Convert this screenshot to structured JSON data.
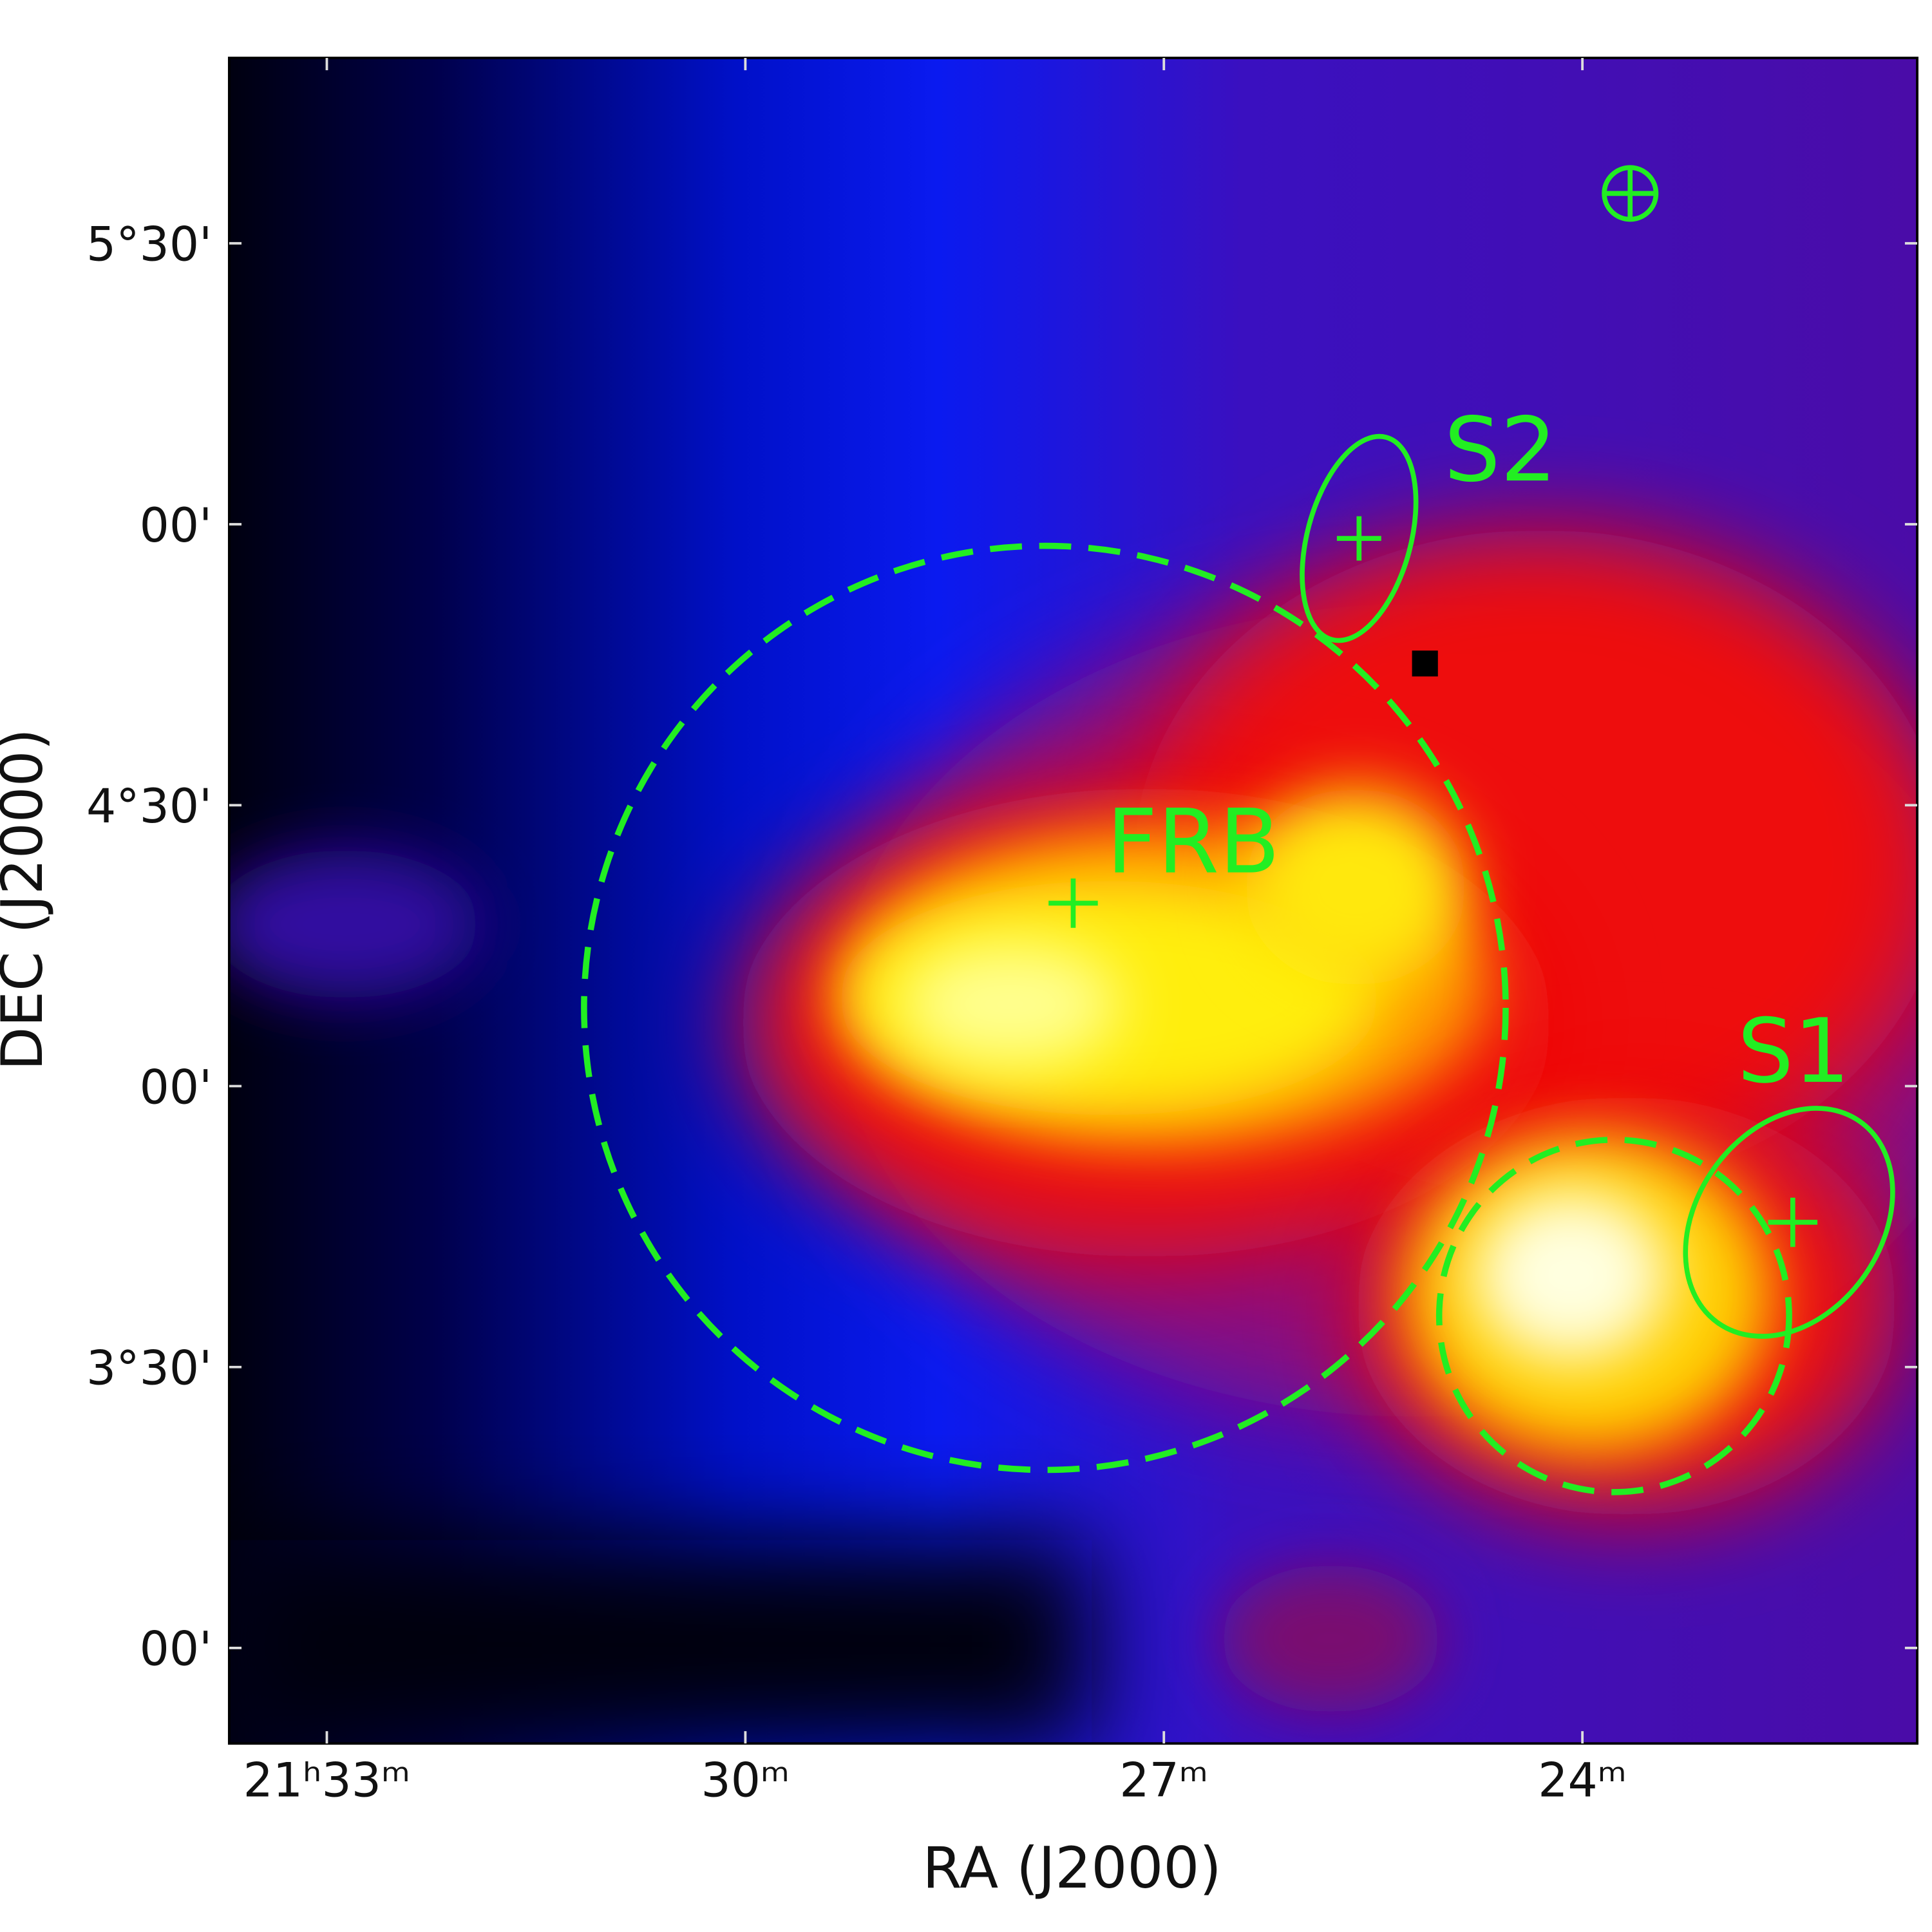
{
  "chart_data": {
    "type": "skymap",
    "xlabel": "RA (J2000)",
    "ylabel": "DEC (J2000)",
    "xlim": [
      1293.7,
      1281.6
    ],
    "xticks": [
      {
        "value": 1293,
        "label": "21ʰ33ᵐ"
      },
      {
        "value": 1290,
        "label": "30ᵐ"
      },
      {
        "value": 1287,
        "label": "27ᵐ"
      },
      {
        "value": 1284,
        "label": "24ᵐ"
      }
    ],
    "ylim": [
      2.83,
      5.83
    ],
    "yticks": [
      {
        "value": 5.5,
        "label": "5°30'"
      },
      {
        "value": 5.0,
        "label": "00'"
      },
      {
        "value": 4.5,
        "label": "4°30'"
      },
      {
        "value": 4.0,
        "label": "00'"
      },
      {
        "value": 3.5,
        "label": "3°30'"
      },
      {
        "value": 3.0,
        "label": "00'"
      }
    ],
    "annotations": [
      "FRB",
      "S2",
      "S1"
    ],
    "annotation_color": "#22ee22"
  }
}
